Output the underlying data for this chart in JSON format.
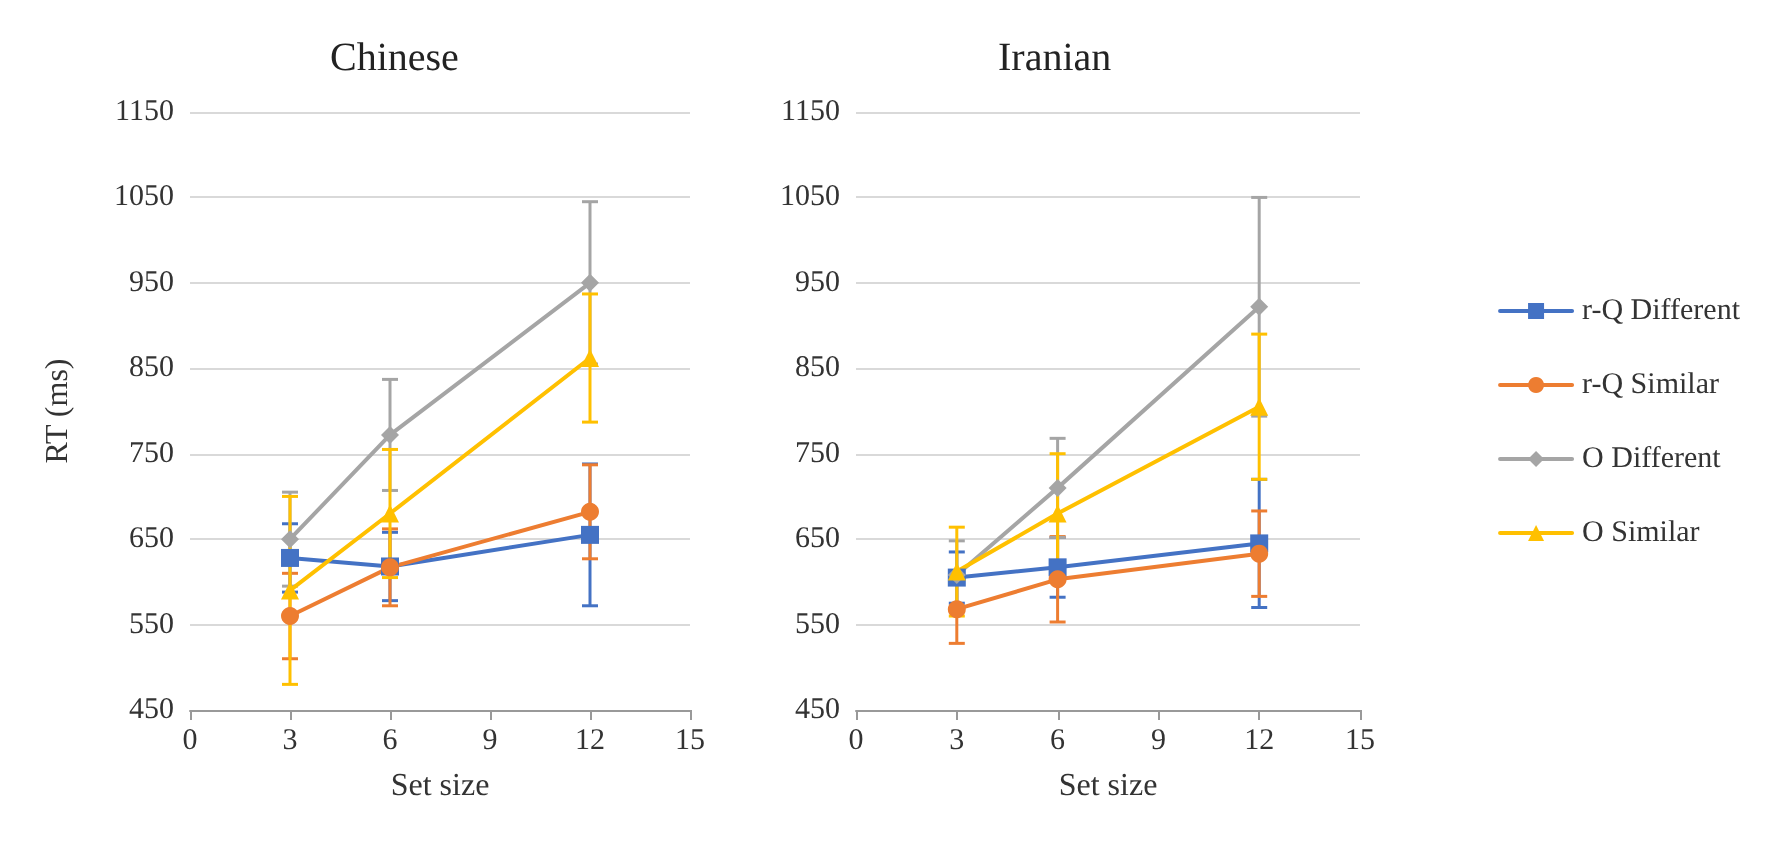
{
  "chart_data": [
    {
      "type": "line",
      "title": "Chinese",
      "xlabel": "Set size",
      "ylabel": "RT (ms)",
      "x": [
        3,
        6,
        12
      ],
      "xlim": [
        0,
        15
      ],
      "xticks": [
        0,
        3,
        6,
        9,
        12,
        15
      ],
      "ylim": [
        450,
        1150
      ],
      "yticks": [
        450,
        550,
        650,
        750,
        850,
        950,
        1050,
        1150
      ],
      "grid": "y",
      "legend": false,
      "series": [
        {
          "color": "#4472c4",
          "marker": "square",
          "values": [
            628,
            618,
            655
          ],
          "errors": [
            40,
            40,
            83
          ]
        },
        {
          "color": "#ed7d31",
          "marker": "circle",
          "values": [
            560,
            617,
            682
          ],
          "errors": [
            50,
            45,
            55
          ]
        },
        {
          "color": "#a5a5a5",
          "marker": "diamond",
          "values": [
            650,
            772,
            950
          ],
          "errors": [
            55,
            65,
            95
          ]
        },
        {
          "color": "#ffc000",
          "marker": "triangle",
          "values": [
            590,
            680,
            862
          ],
          "errors": [
            110,
            75,
            75
          ]
        }
      ]
    },
    {
      "type": "line",
      "title": "Iranian",
      "xlabel": "Set size",
      "x": [
        3,
        6,
        12
      ],
      "xlim": [
        0,
        15
      ],
      "xticks": [
        0,
        3,
        6,
        9,
        12,
        15
      ],
      "ylim": [
        450,
        1150
      ],
      "yticks": [
        450,
        550,
        650,
        750,
        850,
        950,
        1050,
        1150
      ],
      "grid": "y",
      "legend": "right",
      "series": [
        {
          "name": "r-Q Different",
          "color": "#4472c4",
          "marker": "square",
          "values": [
            605,
            617,
            645
          ],
          "errors": [
            30,
            35,
            75
          ]
        },
        {
          "name": "r-Q Similar",
          "color": "#ed7d31",
          "marker": "circle",
          "values": [
            568,
            603,
            633
          ],
          "errors": [
            40,
            50,
            50
          ]
        },
        {
          "name": "O Different",
          "color": "#a5a5a5",
          "marker": "diamond",
          "values": [
            608,
            710,
            922
          ],
          "errors": [
            40,
            58,
            128
          ]
        },
        {
          "name": "O Similar",
          "color": "#ffc000",
          "marker": "triangle",
          "values": [
            612,
            680,
            805
          ],
          "errors": [
            52,
            70,
            85
          ]
        }
      ]
    }
  ]
}
